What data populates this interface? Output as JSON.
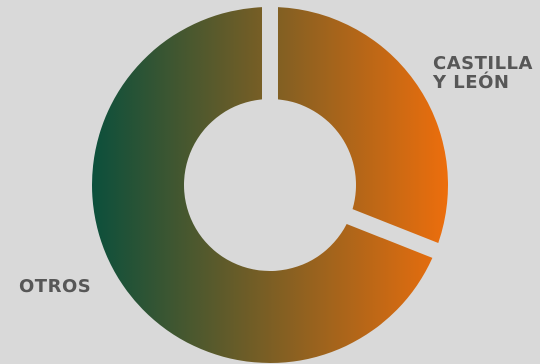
{
  "chart_data": {
    "type": "pie",
    "variant": "donut",
    "categories": [
      "CASTILLA Y LEÓN",
      "OTROS"
    ],
    "values": [
      31,
      69
    ],
    "labels": {
      "castilla_line1": "CASTILLA",
      "castilla_line2": "Y LEÓN",
      "otros": "OTROS"
    },
    "colors": {
      "gradient_start": "#0a4f3c",
      "gradient_end": "#ee6e0c",
      "background": "#d9d9d9",
      "label_text": "#575757"
    },
    "legend": "none",
    "grid": false
  }
}
